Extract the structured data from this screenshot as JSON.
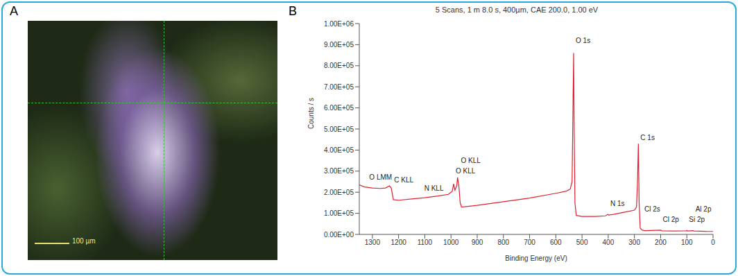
{
  "image_panel": {
    "panel": "A",
    "scale_label": "100 µm"
  },
  "chart_data": {
    "type": "line",
    "panel": "B",
    "title": "5 Scans, 1 m 8.0 s, 400µm, CAE 200.0, 1.00 eV",
    "x_label": "Binding Energy (eV)",
    "y_label": "Counts / s",
    "x": [
      1350,
      1330,
      1300,
      1270,
      1250,
      1235,
      1228,
      1220,
      1200,
      1150,
      1100,
      1050,
      1010,
      995,
      990,
      985,
      978,
      975,
      970,
      965,
      960,
      900,
      800,
      700,
      600,
      560,
      545,
      538,
      535,
      532,
      530,
      527,
      522,
      500,
      450,
      410,
      402,
      398,
      380,
      340,
      300,
      292,
      288,
      285,
      282,
      278,
      270,
      260,
      200,
      195,
      150,
      102,
      100,
      98,
      75,
      73,
      50,
      20,
      0
    ],
    "series": [
      {
        "color": "#e02030",
        "marker": "none",
        "values": [
          235000,
          225000,
          220000,
          218000,
          220000,
          230000,
          220000,
          165000,
          162000,
          168000,
          174000,
          182000,
          190000,
          205000,
          240000,
          210000,
          230000,
          270000,
          230000,
          150000,
          130000,
          138000,
          155000,
          172000,
          195000,
          205000,
          215000,
          250000,
          550000,
          860000,
          500000,
          150000,
          90000,
          85000,
          85000,
          88000,
          95000,
          92000,
          95000,
          105000,
          115000,
          130000,
          260000,
          430000,
          150000,
          30000,
          20000,
          18000,
          20000,
          17000,
          16000,
          17000,
          19000,
          16000,
          18000,
          16000,
          15000,
          14000,
          14000
        ]
      }
    ],
    "xlim": [
      1350,
      0
    ],
    "xticks": [
      1300,
      1200,
      1100,
      1000,
      900,
      800,
      700,
      600,
      500,
      400,
      300,
      200,
      100,
      0
    ],
    "ylim": [
      0,
      1000000
    ],
    "yticks": [
      {
        "value": 0,
        "label": "0.00E+00"
      },
      {
        "value": 100000,
        "label": "1.00E+05"
      },
      {
        "value": 200000,
        "label": "2.00E+05"
      },
      {
        "value": 300000,
        "label": "3.00E+05"
      },
      {
        "value": 400000,
        "label": "4.00E+05"
      },
      {
        "value": 500000,
        "label": "5.00E+05"
      },
      {
        "value": 600000,
        "label": "6.00E+05"
      },
      {
        "value": 700000,
        "label": "7.00E+05"
      },
      {
        "value": 800000,
        "label": "8.00E+05"
      },
      {
        "value": 900000,
        "label": "9.00E+05"
      },
      {
        "value": 1000000,
        "label": "1.00E+06"
      }
    ],
    "grid": false,
    "annotations": [
      {
        "x": 1320,
        "y": 270000,
        "text": "O LMM"
      },
      {
        "x": 1225,
        "y": 260000,
        "text": "C KLL"
      },
      {
        "x": 1110,
        "y": 220000,
        "text": "N KLL"
      },
      {
        "x": 990,
        "y": 300000,
        "text": "O KLL"
      },
      {
        "x": 970,
        "y": 350000,
        "text": "O KLL"
      },
      {
        "x": 532,
        "y": 920000,
        "text": "O 1s"
      },
      {
        "x": 400,
        "y": 145000,
        "text": "N 1s"
      },
      {
        "x": 285,
        "y": 460000,
        "text": "C 1s"
      },
      {
        "x": 270,
        "y": 120000,
        "text": "Cl 2s"
      },
      {
        "x": 200,
        "y": 70000,
        "text": "Cl 2p"
      },
      {
        "x": 100,
        "y": 70000,
        "text": "Si 2p"
      },
      {
        "x": 75,
        "y": 120000,
        "text": "Al 2p"
      }
    ]
  }
}
